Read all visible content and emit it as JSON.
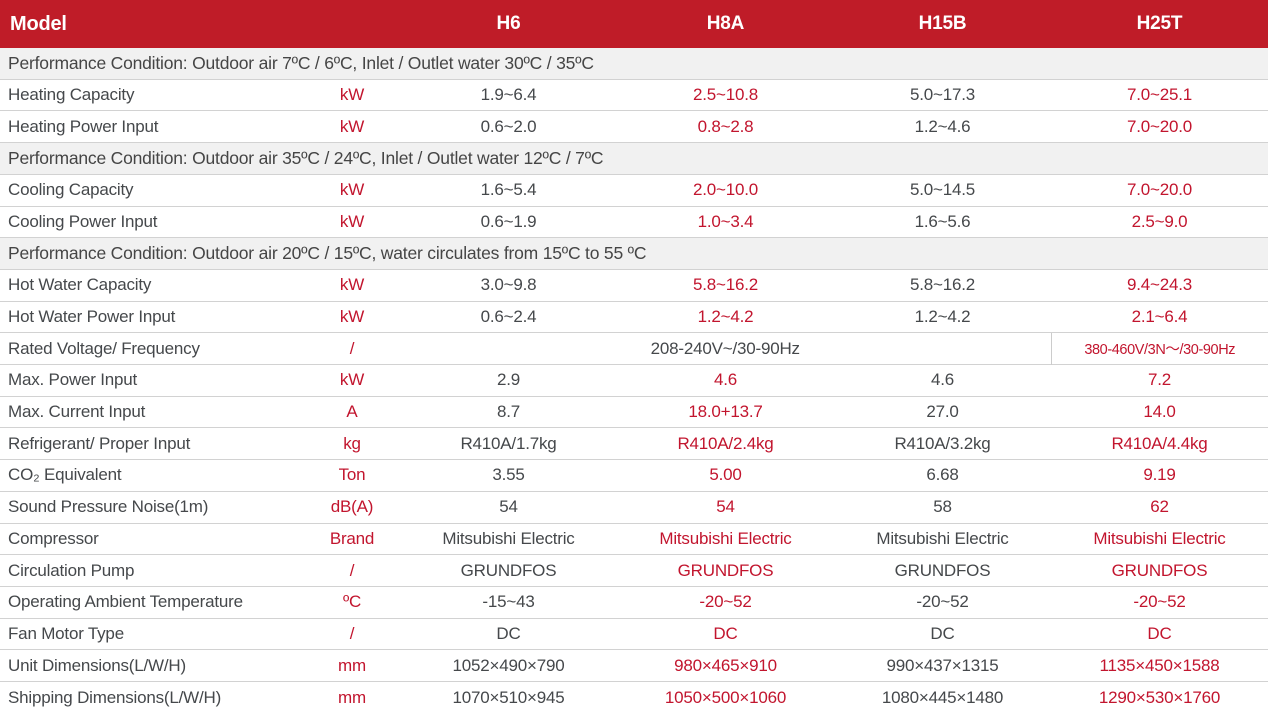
{
  "colors": {
    "header_bg": "#bf1c28",
    "accent_red": "#c2152e",
    "text_dark": "#45484b",
    "section_bg": "#f1f1f1",
    "row_border": "#d2d2d2"
  },
  "header": {
    "model_label": "Model",
    "columns": [
      "H6",
      "H8A",
      "H15B",
      "H25T"
    ]
  },
  "rows": [
    {
      "type": "section",
      "text": "Performance Condition: Outdoor air 7ºC / 6ºC, Inlet / Outlet water 30ºC / 35ºC"
    },
    {
      "type": "data",
      "label": "Heating Capacity",
      "unit": "kW",
      "values": [
        "1.9~6.4",
        "2.5~10.8",
        "5.0~17.3",
        "7.0~25.1"
      ]
    },
    {
      "type": "data",
      "label": "Heating Power Input",
      "unit": "kW",
      "values": [
        "0.6~2.0",
        "0.8~2.8",
        "1.2~4.6",
        "7.0~20.0"
      ]
    },
    {
      "type": "section",
      "text": "Performance Condition: Outdoor air 35ºC / 24ºC, Inlet / Outlet water 12ºC / 7ºC"
    },
    {
      "type": "data",
      "label": "Cooling Capacity",
      "unit": "kW",
      "values": [
        "1.6~5.4",
        "2.0~10.0",
        "5.0~14.5",
        "7.0~20.0"
      ]
    },
    {
      "type": "data",
      "label": "Cooling Power Input",
      "unit": "kW",
      "values": [
        "0.6~1.9",
        "1.0~3.4",
        "1.6~5.6",
        "2.5~9.0"
      ]
    },
    {
      "type": "section",
      "text": "Performance Condition: Outdoor air 20ºC / 15ºC, water circulates from 15ºC to 55 ºC"
    },
    {
      "type": "data",
      "label": "Hot Water Capacity",
      "unit": "kW",
      "values": [
        "3.0~9.8",
        "5.8~16.2",
        "5.8~16.2",
        "9.4~24.3"
      ]
    },
    {
      "type": "data",
      "label": "Hot Water Power Input",
      "unit": "kW",
      "values": [
        "0.6~2.4",
        "1.2~4.2",
        "1.2~4.2",
        "2.1~6.4"
      ]
    },
    {
      "type": "merged",
      "label": "Rated Voltage/ Frequency",
      "unit": "/",
      "merged_value": "208-240V~/30-90Hz",
      "h25t_value": "380-460V/3N～/30-90Hz"
    },
    {
      "type": "data",
      "label": "Max. Power Input",
      "unit": "kW",
      "values": [
        "2.9",
        "4.6",
        "4.6",
        "7.2"
      ]
    },
    {
      "type": "data",
      "label": "Max. Current Input",
      "unit": "A",
      "values": [
        "8.7",
        "18.0+13.7",
        "27.0",
        "14.0"
      ]
    },
    {
      "type": "data",
      "label": "Refrigerant/ Proper Input",
      "unit": "kg",
      "values": [
        "R410A/1.7kg",
        "R410A/2.4kg",
        "R410A/3.2kg",
        "R410A/4.4kg"
      ]
    },
    {
      "type": "data",
      "label": "CO₂ Equivalent",
      "unit": "Ton",
      "values": [
        "3.55",
        "5.00",
        "6.68",
        "9.19"
      ]
    },
    {
      "type": "data",
      "label": "Sound Pressure Noise(1m)",
      "unit": "dB(A)",
      "values": [
        "54",
        "54",
        "58",
        "62"
      ]
    },
    {
      "type": "data",
      "label": "Compressor",
      "unit": "Brand",
      "values": [
        "Mitsubishi Electric",
        "Mitsubishi Electric",
        "Mitsubishi Electric",
        "Mitsubishi Electric"
      ]
    },
    {
      "type": "data",
      "label": "Circulation Pump",
      "unit": "/",
      "values": [
        "GRUNDFOS",
        "GRUNDFOS",
        "GRUNDFOS",
        "GRUNDFOS"
      ]
    },
    {
      "type": "data",
      "label": "Operating Ambient Temperature",
      "unit": "ºC",
      "values": [
        "-15~43",
        "-20~52",
        "-20~52",
        "-20~52"
      ]
    },
    {
      "type": "data",
      "label": "Fan Motor Type",
      "unit": "/",
      "values": [
        "DC",
        "DC",
        "DC",
        "DC"
      ]
    },
    {
      "type": "data",
      "label": "Unit Dimensions(L/W/H)",
      "unit": "mm",
      "values": [
        "1052×490×790",
        "980×465×910",
        "990×437×1315",
        "1135×450×1588"
      ]
    },
    {
      "type": "data",
      "label": "Shipping Dimensions(L/W/H)",
      "unit": "mm",
      "values": [
        "1070×510×945",
        "1050×500×1060",
        "1080×445×1480",
        "1290×530×1760"
      ]
    }
  ]
}
